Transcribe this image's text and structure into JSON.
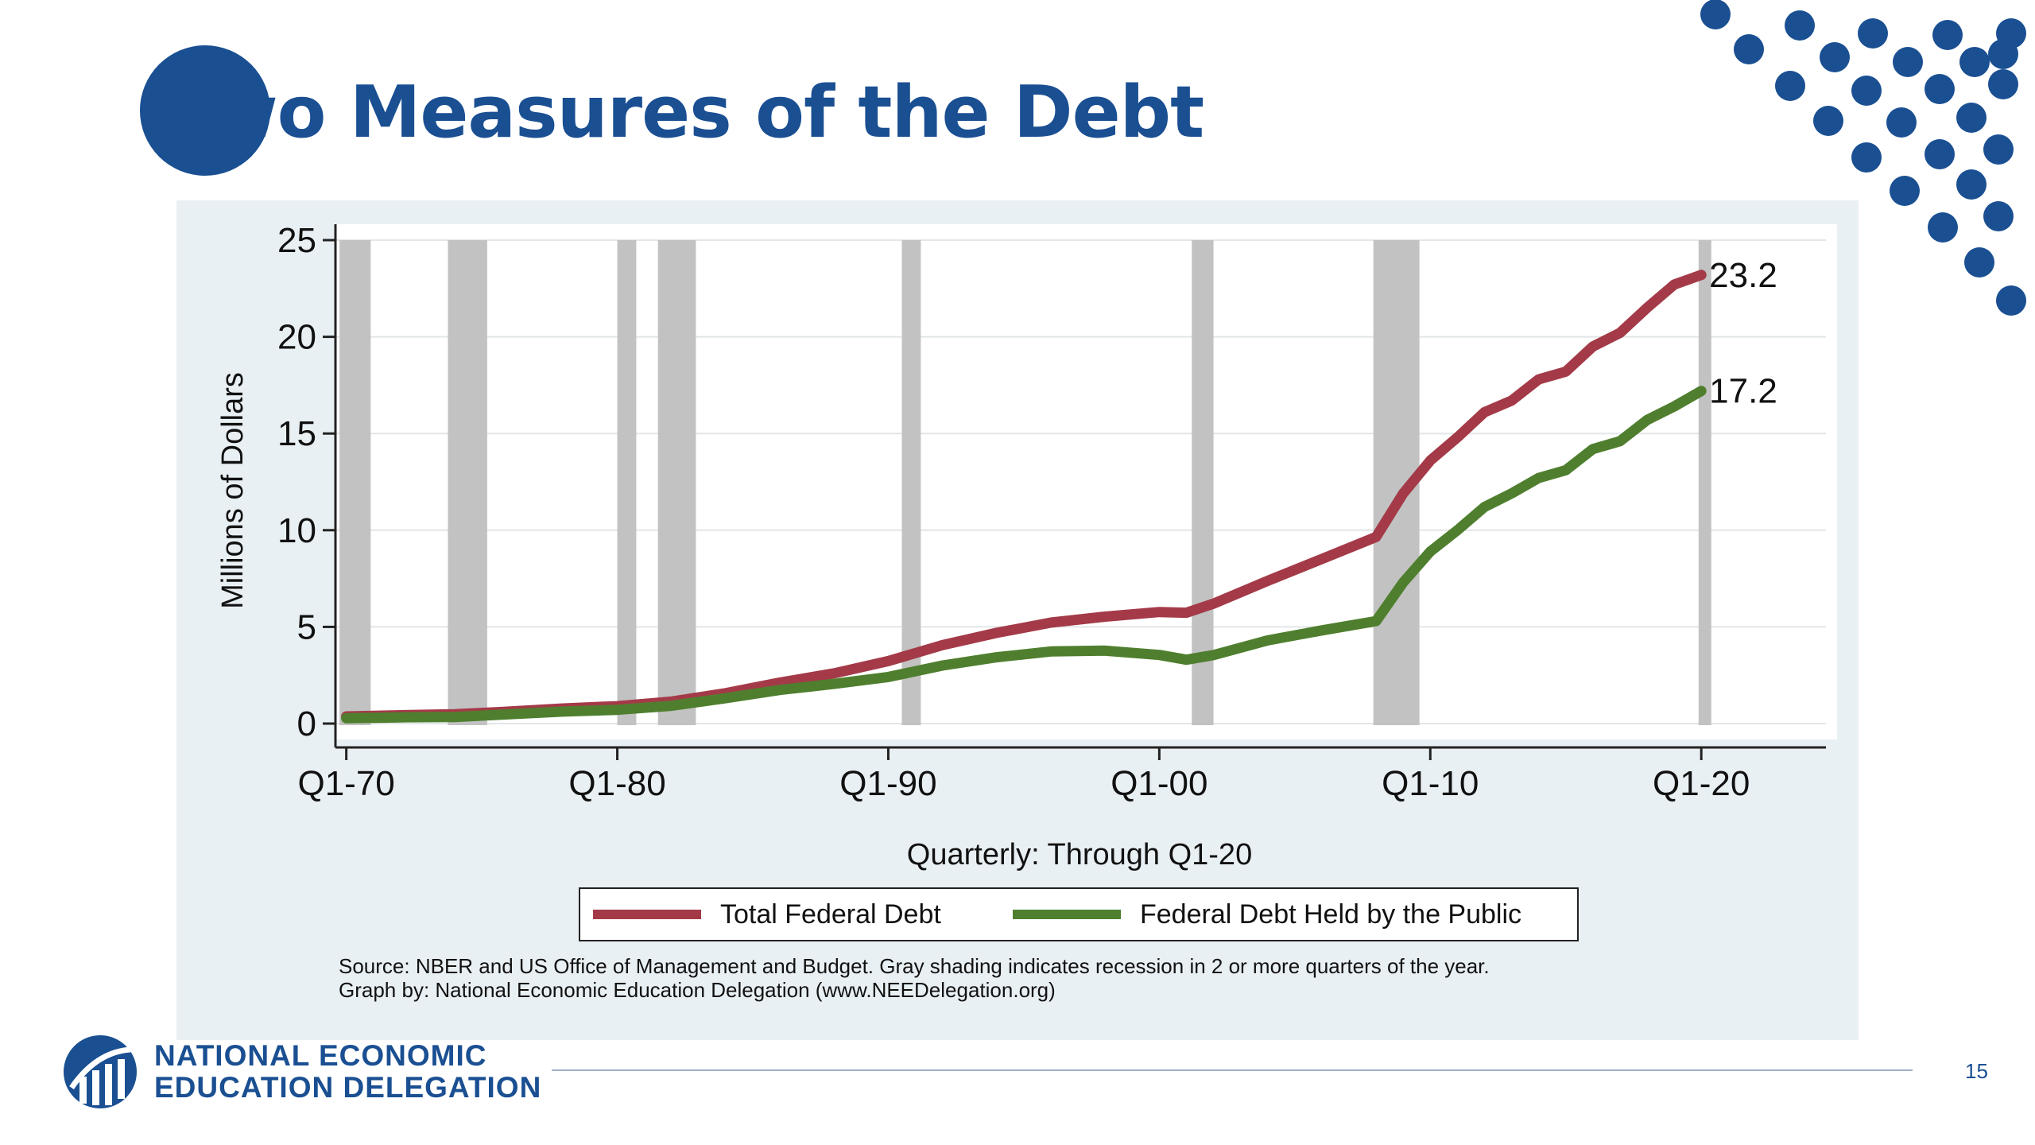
{
  "slide": {
    "title": "Two Measures of the Debt",
    "page_number": "15",
    "footer_org_line1": "NATIONAL ECONOMIC",
    "footer_org_line2": "EDUCATION DELEGATION",
    "source_line1": "Source: NBER and US Office of Management and Budget. Gray shading indicates recession in 2 or more quarters of the year.",
    "source_line2": "Graph by: National Economic Education Delegation (www.NEEDelegation.org)",
    "brand_color": "#1a4f92"
  },
  "chart_data": {
    "type": "line",
    "title": "",
    "xlabel": "Quarterly: Through Q1-20",
    "ylabel": "Millions of Dollars",
    "ylim": [
      0,
      25
    ],
    "yticks": [
      0,
      5,
      10,
      15,
      20,
      25
    ],
    "xlim": [
      1969.6,
      2024.6
    ],
    "xticks": [
      {
        "value": 1970,
        "label": "Q1-70"
      },
      {
        "value": 1980,
        "label": "Q1-80"
      },
      {
        "value": 1990,
        "label": "Q1-90"
      },
      {
        "value": 2000,
        "label": "Q1-00"
      },
      {
        "value": 2010,
        "label": "Q1-10"
      },
      {
        "value": 2020,
        "label": "Q1-20"
      }
    ],
    "grid": true,
    "legend_position": "bottom",
    "recession_shading": [
      [
        1969.75,
        1970.9
      ],
      [
        1973.75,
        1975.2
      ],
      [
        1980.0,
        1980.7
      ],
      [
        1981.5,
        1982.9
      ],
      [
        1990.5,
        1991.2
      ],
      [
        2001.2,
        2002.0
      ],
      [
        2007.9,
        2009.6
      ],
      [
        2019.9,
        2020.3
      ]
    ],
    "series": [
      {
        "name": "Total Federal Debt",
        "color": "#a43a48",
        "end_label": "23.2",
        "x": [
          1970,
          1972,
          1974,
          1976,
          1978,
          1980,
          1982,
          1984,
          1986,
          1988,
          1990,
          1992,
          1994,
          1996,
          1998,
          2000,
          2001,
          2002,
          2004,
          2006,
          2008,
          2009,
          2010,
          2011,
          2012,
          2013,
          2014,
          2015,
          2016,
          2017,
          2018,
          2019,
          2020
        ],
        "values": [
          0.37,
          0.43,
          0.48,
          0.62,
          0.78,
          0.9,
          1.14,
          1.57,
          2.12,
          2.6,
          3.23,
          4.06,
          4.69,
          5.22,
          5.53,
          5.77,
          5.73,
          6.2,
          7.38,
          8.51,
          9.65,
          11.9,
          13.6,
          14.8,
          16.1,
          16.7,
          17.8,
          18.2,
          19.5,
          20.2,
          21.5,
          22.7,
          23.2
        ]
      },
      {
        "name": "Federal Debt Held by the Public",
        "color": "#4f7f2e",
        "end_label": "17.2",
        "x": [
          1970,
          1972,
          1974,
          1976,
          1978,
          1980,
          1982,
          1984,
          1986,
          1988,
          1990,
          1992,
          1994,
          1996,
          1998,
          2000,
          2001,
          2002,
          2004,
          2006,
          2008,
          2009,
          2010,
          2011,
          2012,
          2013,
          2014,
          2015,
          2016,
          2017,
          2018,
          2019,
          2020
        ],
        "values": [
          0.28,
          0.32,
          0.34,
          0.48,
          0.62,
          0.71,
          0.92,
          1.31,
          1.74,
          2.05,
          2.41,
          3.0,
          3.43,
          3.73,
          3.77,
          3.55,
          3.3,
          3.54,
          4.3,
          4.82,
          5.3,
          7.3,
          8.9,
          10.0,
          11.2,
          11.9,
          12.7,
          13.1,
          14.2,
          14.6,
          15.7,
          16.4,
          17.2
        ]
      }
    ]
  }
}
